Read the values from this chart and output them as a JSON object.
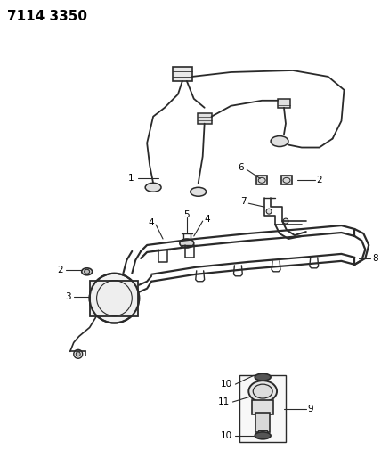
{
  "title": "7114 3350",
  "bg_color": "#ffffff",
  "line_color": "#2a2a2a",
  "fig_width": 4.28,
  "fig_height": 5.33,
  "dpi": 100
}
